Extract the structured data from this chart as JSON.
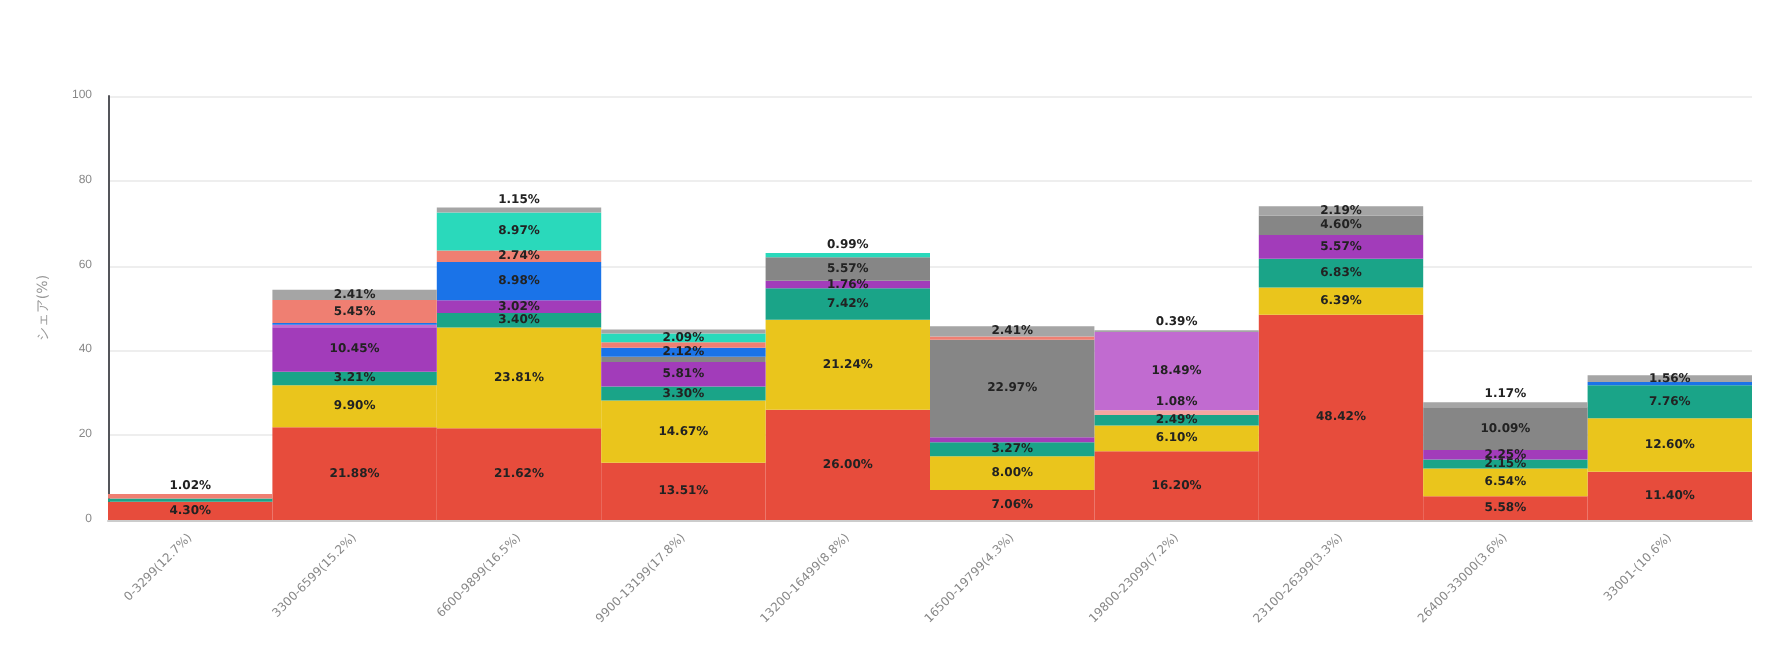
{
  "chart_data": {
    "type": "bar",
    "stacked": true,
    "ylabel": "シェア(%)",
    "ylim": [
      0,
      100
    ],
    "yticks": [
      0,
      20,
      40,
      60,
      80,
      100
    ],
    "grid": "y",
    "categories": [
      "0-3299(12.7%)",
      "3300-6599(15.2%)",
      "6600-9899(16.5%)",
      "9900-13199(17.8%)",
      "13200-16499(8.8%)",
      "16500-19799(4.3%)",
      "19800-23099(7.2%)",
      "23100-26399(3.3%)",
      "26400-33000(3.6%)",
      "33001-(10.6%)"
    ],
    "series": [
      {
        "color": "#e74c3c",
        "values": [
          4.3,
          21.88,
          21.62,
          13.51,
          26.0,
          7.06,
          16.2,
          48.42,
          5.58,
          11.4
        ],
        "value_labels": [
          "4.30%",
          "21.88%",
          "21.62%",
          "13.51%",
          "26.00%",
          "7.06%",
          "16.20%",
          "48.42%",
          "5.58%",
          "11.40%"
        ]
      },
      {
        "color": "#eac51c",
        "values": [
          null,
          9.9,
          23.81,
          14.67,
          21.24,
          8.0,
          6.1,
          6.39,
          6.54,
          12.6
        ],
        "value_labels": [
          null,
          "9.90%",
          "23.81%",
          "14.67%",
          "21.24%",
          "8.00%",
          "6.10%",
          "6.39%",
          "6.54%",
          "12.60%"
        ]
      },
      {
        "color": "#1aa488",
        "values": [
          0.8,
          3.21,
          3.4,
          3.3,
          7.42,
          3.27,
          2.49,
          6.83,
          2.15,
          7.76
        ],
        "value_labels": [
          null,
          "3.21%",
          "3.40%",
          "3.30%",
          "7.42%",
          "3.27%",
          "2.49%",
          "6.83%",
          "2.15%",
          "7.76%"
        ]
      },
      {
        "color": "#a23cba",
        "values": [
          null,
          10.45,
          3.02,
          5.81,
          1.76,
          1.2,
          null,
          5.57,
          2.25,
          null
        ],
        "value_labels": [
          null,
          "10.45%",
          "3.02%",
          "5.81%",
          "1.76%",
          null,
          null,
          "5.57%",
          "2.25%",
          null
        ]
      },
      {
        "color": "#f4a6a0",
        "values": [
          null,
          null,
          null,
          null,
          null,
          null,
          1.08,
          null,
          null,
          null
        ],
        "value_labels": [
          null,
          null,
          null,
          null,
          null,
          null,
          "1.08%",
          null,
          null,
          null
        ]
      },
      {
        "color": "#c16bd0",
        "values": [
          null,
          0.6,
          null,
          null,
          null,
          null,
          18.49,
          null,
          null,
          null
        ],
        "value_labels": [
          null,
          null,
          null,
          null,
          null,
          null,
          "18.49%",
          null,
          null,
          null
        ]
      },
      {
        "color": "#868686",
        "values": [
          null,
          null,
          null,
          1.2,
          5.57,
          22.97,
          null,
          4.6,
          10.09,
          null
        ],
        "value_labels": [
          null,
          null,
          null,
          null,
          "5.57%",
          "22.97%",
          null,
          "4.60%",
          "10.09%",
          null
        ]
      },
      {
        "color": "#1a73e8",
        "values": [
          null,
          0.4,
          8.98,
          2.12,
          null,
          null,
          null,
          null,
          null,
          0.8
        ],
        "value_labels": [
          null,
          null,
          "8.98%",
          "2.12%",
          null,
          null,
          null,
          null,
          null,
          null
        ]
      },
      {
        "color": "#ef7f72",
        "values": [
          1.02,
          5.45,
          2.74,
          1.3,
          null,
          0.8,
          null,
          null,
          null,
          null
        ],
        "value_labels": [
          "1.02%",
          "5.45%",
          "2.74%",
          null,
          null,
          null,
          null,
          null,
          null,
          null
        ]
      },
      {
        "color": "#2ad9bb",
        "values": [
          null,
          null,
          8.97,
          2.09,
          0.99,
          null,
          null,
          null,
          null,
          null
        ],
        "value_labels": [
          null,
          null,
          "8.97%",
          "2.09%",
          "0.99%",
          null,
          null,
          null,
          null,
          null
        ]
      },
      {
        "color": "#a5a5a5",
        "values": [
          null,
          2.41,
          1.15,
          0.9,
          null,
          2.41,
          0.39,
          2.19,
          1.17,
          1.56
        ],
        "value_labels": [
          null,
          "2.41%",
          "1.15%",
          null,
          null,
          "2.41%",
          "0.39%",
          "2.19%",
          "1.17%",
          "1.56%"
        ]
      }
    ]
  }
}
